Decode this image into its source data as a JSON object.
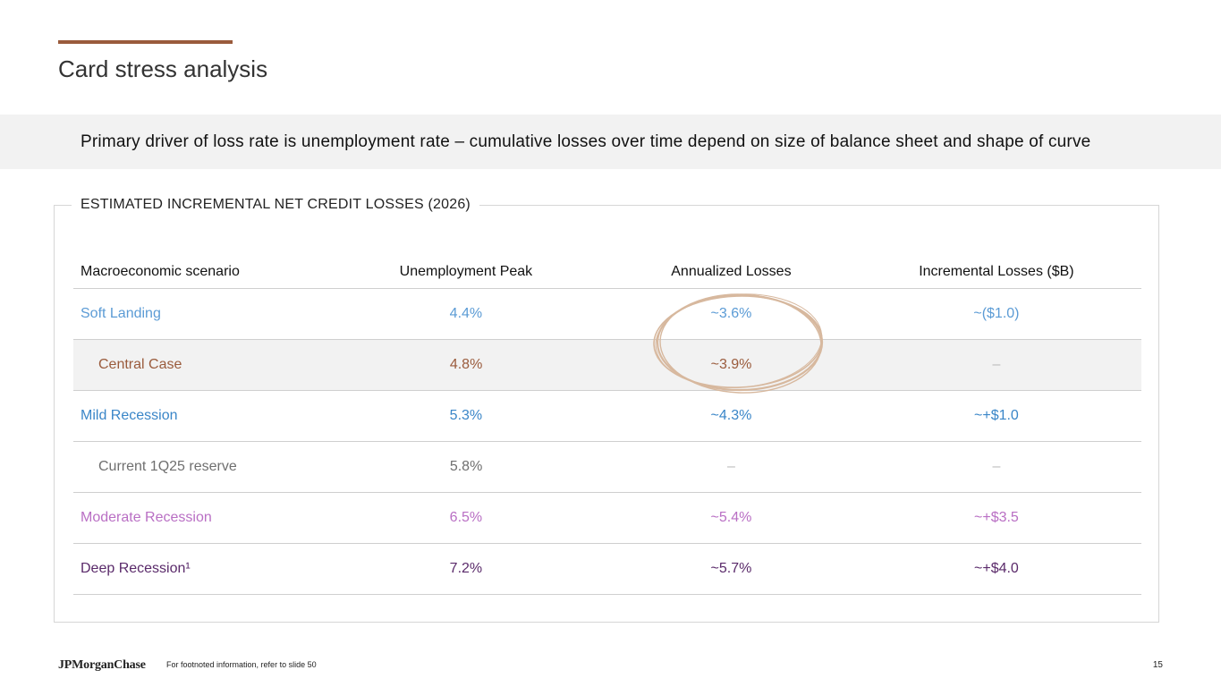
{
  "slide": {
    "title": "Card stress analysis",
    "banner": "Primary driver of loss rate is unemployment rate – cumulative losses over time depend on size of balance sheet and shape of curve",
    "panel_title": "ESTIMATED INCREMENTAL NET CREDIT LOSSES (2026)",
    "logo_text": "JPMorganChase",
    "footnote": "For footnoted information, refer to slide 50",
    "page_number": "15",
    "accent_color": "#9a5b3c",
    "highlight_color": "#d7b89e"
  },
  "table": {
    "headers": [
      "Macroeconomic scenario",
      "Unemployment Peak",
      "Annualized Losses",
      "Incremental Losses ($B)"
    ],
    "rows": [
      {
        "scenario": "Soft Landing",
        "peak": "4.4%",
        "annualized": "~3.6%",
        "incremental": "~($1.0)",
        "color": "#5b9bd5"
      },
      {
        "scenario": "Central Case",
        "peak": "4.8%",
        "annualized": "~3.9%",
        "incremental": "–",
        "color": "#9a5b3c"
      },
      {
        "scenario": "Mild Recession",
        "peak": "5.3%",
        "annualized": "~4.3%",
        "incremental": "~+$1.0",
        "color": "#3a86c8"
      },
      {
        "scenario": "Current 1Q25 reserve",
        "peak": "5.8%",
        "annualized": "–",
        "incremental": "–",
        "color": "#6f6f6f"
      },
      {
        "scenario": "Moderate Recession",
        "peak": "6.5%",
        "annualized": "~5.4%",
        "incremental": "~+$3.5",
        "color": "#b96fc4"
      },
      {
        "scenario": "Deep Recession¹",
        "peak": "7.2%",
        "annualized": "~5.7%",
        "incremental": "~+$4.0",
        "color": "#5a2a6a"
      }
    ]
  }
}
